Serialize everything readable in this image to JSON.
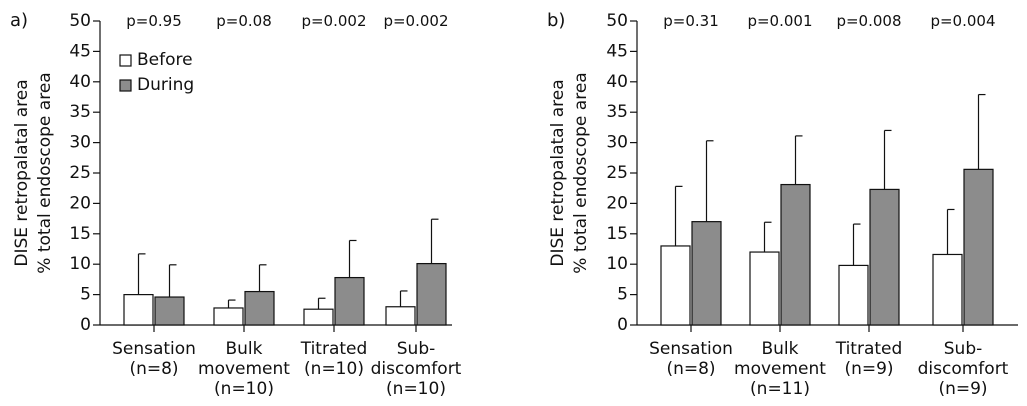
{
  "chart_data": [
    {
      "type": "bar",
      "panel_label": "a)",
      "ylabel_line1": "DISE retropalatal area",
      "ylabel_line2": "% total endoscope area",
      "ylim": [
        0,
        50
      ],
      "yticks": [
        0,
        5,
        10,
        15,
        20,
        25,
        30,
        35,
        40,
        45,
        50
      ],
      "grid": false,
      "legend_position": "top-left",
      "categories": [
        [
          "Sensation",
          "(n=8)"
        ],
        [
          "Bulk",
          "movement",
          "(n=10)"
        ],
        [
          "Titrated",
          "(n=10)"
        ],
        [
          "Sub-",
          "discomfort",
          "(n=10)"
        ]
      ],
      "p_values": [
        "p=0.95",
        "p=0.08",
        "p=0.002",
        "p=0.002"
      ],
      "series": [
        {
          "name": "Before",
          "color": "#ffffff",
          "values": [
            5.0,
            2.8,
            2.6,
            3.0
          ],
          "error_upper": [
            11.7,
            4.1,
            4.4,
            5.6
          ]
        },
        {
          "name": "During",
          "color": "#8c8c8c",
          "values": [
            4.6,
            5.5,
            7.8,
            10.1
          ],
          "error_upper": [
            9.9,
            9.9,
            13.9,
            17.4
          ]
        }
      ]
    },
    {
      "type": "bar",
      "panel_label": "b)",
      "ylabel_line1": "DISE retropalatal area",
      "ylabel_line2": "% total endoscope area",
      "ylim": [
        0,
        50
      ],
      "yticks": [
        0,
        5,
        10,
        15,
        20,
        25,
        30,
        35,
        40,
        45,
        50
      ],
      "grid": false,
      "categories": [
        [
          "Sensation",
          "(n=8)"
        ],
        [
          "Bulk",
          "movement",
          "(n=11)"
        ],
        [
          "Titrated",
          "(n=9)"
        ],
        [
          "Sub-",
          "discomfort",
          "(n=9)"
        ]
      ],
      "p_values": [
        "p=0.31",
        "p=0.001",
        "p=0.008",
        "p=0.004"
      ],
      "series": [
        {
          "name": "Before",
          "color": "#ffffff",
          "values": [
            13.0,
            12.0,
            9.8,
            11.6
          ],
          "error_upper": [
            22.8,
            16.9,
            16.6,
            19.0
          ]
        },
        {
          "name": "During",
          "color": "#8c8c8c",
          "values": [
            17.0,
            23.1,
            22.3,
            25.6
          ],
          "error_upper": [
            30.3,
            31.1,
            32.0,
            37.9
          ]
        }
      ]
    }
  ]
}
